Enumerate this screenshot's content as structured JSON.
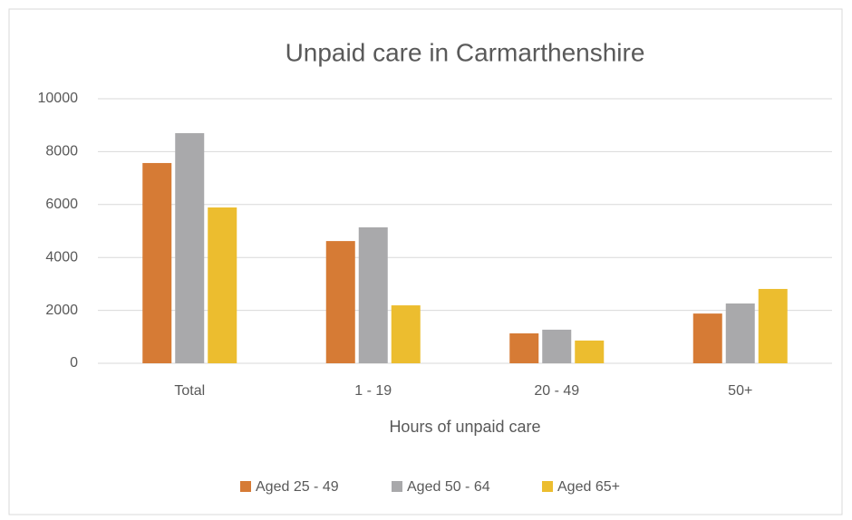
{
  "chart_data": {
    "type": "bar",
    "title": "Unpaid care in Carmarthenshire",
    "x_label": "Hours of unpaid care",
    "categories": [
      "Total",
      "1 - 19",
      "20 - 49",
      "50+"
    ],
    "series": [
      {
        "name": "Aged 25 - 49",
        "color": "#d67b35",
        "values": [
          7570,
          4620,
          1130,
          1880
        ]
      },
      {
        "name": "Aged 50 - 64",
        "color": "#a9a9ab",
        "values": [
          8700,
          5140,
          1270,
          2260
        ]
      },
      {
        "name": "Aged 65+",
        "color": "#ecbd2f",
        "values": [
          5890,
          2190,
          860,
          2810
        ]
      }
    ],
    "ylim": [
      0,
      10000
    ],
    "yticks": [
      0,
      2000,
      4000,
      6000,
      8000,
      10000
    ],
    "grid": true,
    "legend": "bottom"
  }
}
